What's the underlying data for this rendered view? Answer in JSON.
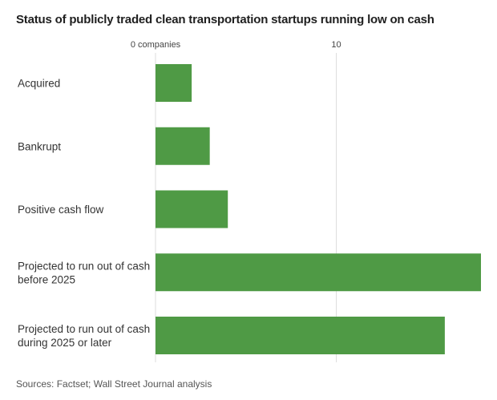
{
  "chart_data": {
    "type": "bar",
    "orientation": "horizontal",
    "title": "Status of publicly traded clean transportation startups running low on cash",
    "categories": [
      [
        "Acquired"
      ],
      [
        "Bankrupt"
      ],
      [
        "Positive cash flow"
      ],
      [
        "Projected to run out of cash",
        "before 2025"
      ],
      [
        "Projected to run out of cash",
        "during 2025 or later"
      ]
    ],
    "values": [
      2,
      3,
      4,
      18,
      16
    ],
    "xlim": [
      0,
      18
    ],
    "ticks": [
      {
        "value": 0,
        "label": "0 companies"
      },
      {
        "value": 10,
        "label": "10"
      }
    ],
    "bar_color": "#4f9a45",
    "source": "Sources: Factset; Wall Street Journal analysis"
  }
}
